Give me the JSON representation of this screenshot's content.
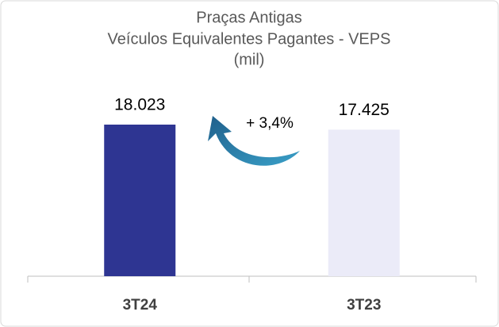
{
  "chart_data": {
    "type": "bar",
    "title": [
      "Praças Antigas",
      "Veículos Equivalentes Pagantes - VEPS",
      "(mil)"
    ],
    "categories": [
      "3T24",
      "3T23"
    ],
    "values": [
      18023,
      17425
    ],
    "value_labels": [
      "18.023",
      "17.425"
    ],
    "colors": [
      "#2e3592",
      "#ebebf8"
    ],
    "annotation": "+ 3,4%"
  }
}
